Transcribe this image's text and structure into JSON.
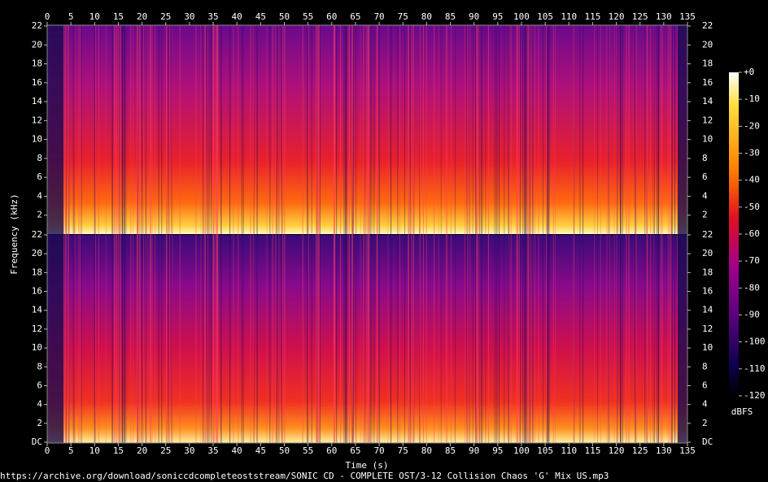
{
  "chart_data": {
    "type": "spectrogram",
    "xlabel": "Time (s)",
    "ylabel": "Frequency (kHz)",
    "xlim": [
      0,
      135
    ],
    "xticks": [
      0,
      5,
      10,
      15,
      20,
      25,
      30,
      35,
      40,
      45,
      50,
      55,
      60,
      65,
      70,
      75,
      80,
      85,
      90,
      95,
      100,
      105,
      110,
      115,
      120,
      125,
      130,
      135
    ],
    "panels": [
      {
        "ylim": [
          0,
          22
        ],
        "yticks": [
          2,
          4,
          6,
          8,
          10,
          12,
          14,
          16,
          18,
          20,
          22
        ]
      },
      {
        "ylim": [
          0,
          22
        ],
        "yticks": [
          {
            "value": 0,
            "label": "DC"
          },
          2,
          4,
          6,
          8,
          10,
          12,
          14,
          16,
          18,
          20,
          22
        ]
      }
    ],
    "colorbar": {
      "label": "dBFS",
      "clim": [
        -120,
        0
      ],
      "ticks": [
        {
          "value": 0,
          "label": "+0"
        },
        -10,
        -20,
        -30,
        -40,
        -50,
        -60,
        -70,
        -80,
        -90,
        -100,
        -110,
        -120
      ]
    },
    "source": "https://archive.org/download/soniccdcompleteoststream/SONIC CD - COMPLETE OST/3-12 Collision Chaos 'G' Mix US.mp3"
  }
}
